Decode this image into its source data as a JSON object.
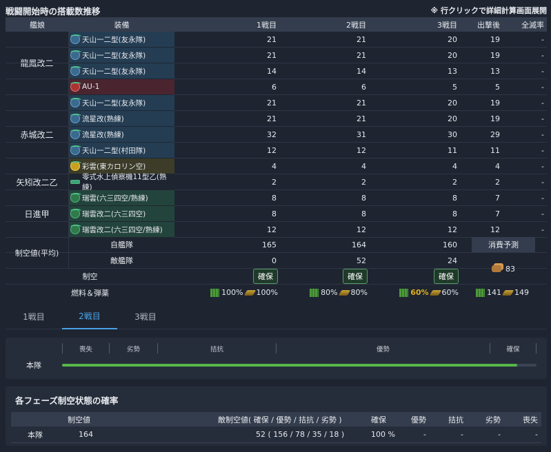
{
  "title": "戦闘開始時の搭載数推移",
  "hint": "※ 行クリックで詳細計算画面展開",
  "headers": {
    "ship": "艦娘",
    "equip": "装備",
    "b1": "1戦目",
    "b2": "2戦目",
    "b3": "3戦目",
    "depart": "出撃後",
    "annihilate": "全滅率"
  },
  "ships": [
    {
      "name": "龍鳳改二",
      "rows": [
        {
          "eq": "天山一二型(友永隊)",
          "icon": "torpedo-bomber-icon",
          "color": "blue",
          "v": [
            "21",
            "21",
            "20",
            "19",
            "-"
          ]
        },
        {
          "eq": "天山一二型(友永隊)",
          "icon": "torpedo-bomber-icon",
          "color": "blue",
          "v": [
            "21",
            "21",
            "20",
            "19",
            "-"
          ]
        },
        {
          "eq": "天山一二型(友永隊)",
          "icon": "torpedo-bomber-icon",
          "color": "blue",
          "v": [
            "14",
            "14",
            "13",
            "13",
            "-"
          ]
        },
        {
          "eq": "AU-1",
          "icon": "dive-bomber-red-icon",
          "color": "red",
          "v": [
            "6",
            "6",
            "5",
            "5",
            "-"
          ]
        }
      ]
    },
    {
      "name": "赤城改二",
      "rows": [
        {
          "eq": "天山一二型(友永隊)",
          "icon": "torpedo-bomber-icon",
          "color": "blue",
          "v": [
            "21",
            "21",
            "20",
            "19",
            "-"
          ]
        },
        {
          "eq": "流星改(熟練)",
          "icon": "torpedo-bomber-icon",
          "color": "blue",
          "v": [
            "21",
            "21",
            "20",
            "19",
            "-"
          ]
        },
        {
          "eq": "流星改(熟練)",
          "icon": "torpedo-bomber-icon",
          "color": "blue",
          "v": [
            "32",
            "31",
            "30",
            "29",
            "-"
          ]
        },
        {
          "eq": "天山一二型(村田隊)",
          "icon": "torpedo-bomber-icon",
          "color": "blue",
          "v": [
            "12",
            "12",
            "11",
            "11",
            "-"
          ]
        },
        {
          "eq": "彩雲(東カロリン空)",
          "icon": "recon-plane-icon",
          "color": "yel",
          "v": [
            "4",
            "4",
            "4",
            "4",
            "-"
          ]
        }
      ]
    },
    {
      "name": "矢矧改二乙",
      "rows": [
        {
          "eq": "零式水上偵察機11型乙(熟練)",
          "icon": "seaplane-icon",
          "color": "none",
          "v": [
            "2",
            "2",
            "2",
            "2",
            "-"
          ]
        }
      ]
    },
    {
      "name": "日進甲",
      "rows": [
        {
          "eq": "瑞雲(六三四空/熟練)",
          "icon": "seaplane-bomber-icon",
          "color": "grn",
          "v": [
            "8",
            "8",
            "8",
            "7",
            "-"
          ]
        },
        {
          "eq": "瑞雲改二(六三四空)",
          "icon": "seaplane-bomber-icon",
          "color": "grn",
          "v": [
            "8",
            "8",
            "8",
            "7",
            "-"
          ]
        },
        {
          "eq": "瑞雲改二(六三四空/熟練)",
          "icon": "seaplane-bomber-icon",
          "color": "grn",
          "v": [
            "12",
            "12",
            "12",
            "12",
            "-"
          ]
        }
      ]
    }
  ],
  "air": {
    "label": "制空値(平均)",
    "own_label": "自艦隊",
    "enemy_label": "敵艦隊",
    "own": [
      "165",
      "164",
      "160"
    ],
    "enemy": [
      "0",
      "52",
      "24"
    ],
    "consume_label": "消費予測",
    "consume_value": "83"
  },
  "control": {
    "label": "制空",
    "status": [
      "確保",
      "確保",
      "確保"
    ]
  },
  "supply": {
    "label": "燃料＆弾薬",
    "b1": {
      "fuel": "100%",
      "ammo": "100%"
    },
    "b2": {
      "fuel": "80%",
      "ammo": "80%"
    },
    "b3": {
      "fuel": "60%",
      "ammo": "60%"
    },
    "total": {
      "fuel": "141",
      "ammo": "149"
    }
  },
  "tabs": [
    "1戦目",
    "2戦目",
    "3戦目"
  ],
  "active_tab": 1,
  "scale": {
    "labels": [
      "喪失",
      "劣勢",
      "拮抗",
      "優勢",
      "確保"
    ],
    "row_label": "本隊",
    "fill": 0.96
  },
  "phase": {
    "title": "各フェーズ制空状態の確率",
    "headers": [
      "制空値",
      "敵制空値( 確保 / 優勢 / 拮抗 / 劣勢 )",
      "確保",
      "優勢",
      "拮抗",
      "劣勢",
      "喪失"
    ],
    "row": {
      "name": "本隊",
      "air": "164",
      "enemy": "52 ( 156 / 78 / 35 / 18 )",
      "kakuho": "100 %",
      "yusei": "-",
      "kikko": "-",
      "ressei": "-",
      "soshitsu": "-"
    }
  },
  "colors": {
    "accent": "#4aa3e8",
    "bar": "#56b648",
    "fuel_warn": "#e0b020"
  }
}
